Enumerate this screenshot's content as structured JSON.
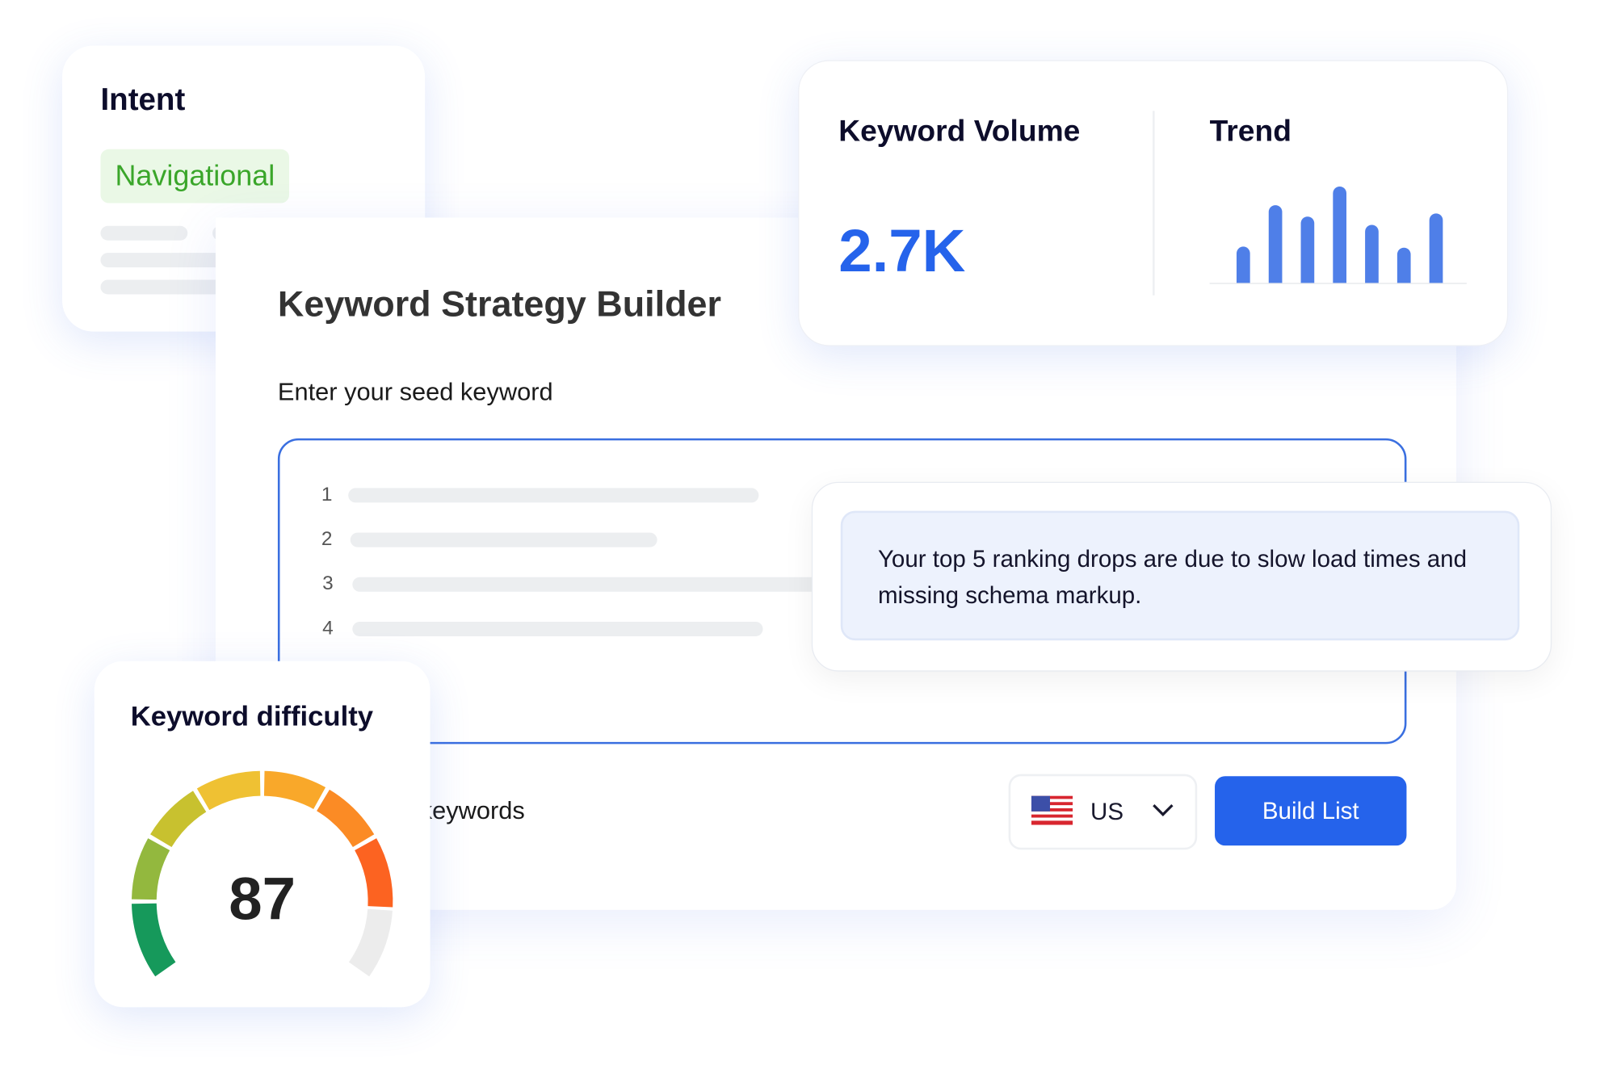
{
  "intent": {
    "title": "Intent",
    "badge": "Navigational",
    "badge_color": "#3aa62a",
    "badge_bg": "#eaf8e6"
  },
  "builder": {
    "title": "Keyword Strategy Builder",
    "seed_label": "Enter your seed keyword",
    "line_numbers": [
      "1",
      "2",
      "3",
      "4"
    ],
    "keywords_label": "keywords",
    "country": {
      "flag_icon": "us-flag-icon",
      "value": "US"
    },
    "build_button": "Build List",
    "accent": "#2563eb"
  },
  "volume": {
    "title": "Keyword Volume",
    "value": "2.7K",
    "value_color": "#2563eb"
  },
  "trend": {
    "title": "Trend",
    "bar_color": "#4f7fe8",
    "values": [
      35,
      75,
      64,
      93,
      56,
      34,
      67
    ]
  },
  "insight": {
    "text": "Your top 5 ranking drops are due to slow load times and missing schema markup."
  },
  "difficulty": {
    "title": "Keyword difficulty",
    "value": "87",
    "score": 87,
    "segment_colors": [
      "#16995b",
      "#93b83e",
      "#c8c12f",
      "#efc133",
      "#f9a82a",
      "#fb8b25",
      "#fc6321"
    ],
    "track_color": "#ececec"
  }
}
